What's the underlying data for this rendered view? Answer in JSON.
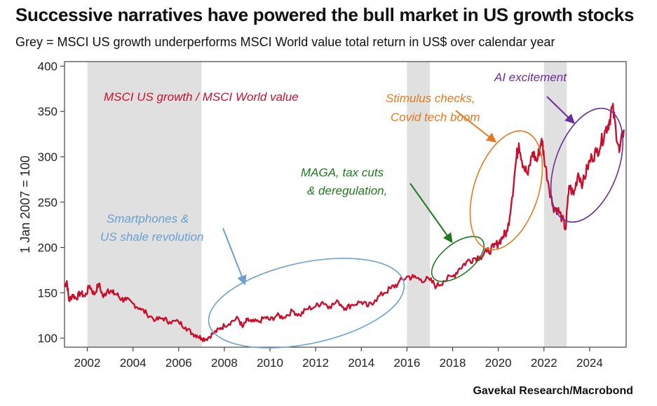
{
  "title": "Successive narratives have powered the bull market in US growth stocks",
  "subtitle": "Grey = MSCI US growth underperforms MSCI World value total return in US$ over calendar year",
  "source": "Gavekal Research/Macrobond",
  "chart_data": {
    "type": "line",
    "ylabel": "1 Jan 2007 = 100",
    "xlim": [
      2001.0,
      2025.6
    ],
    "ylim": [
      90,
      405
    ],
    "yticks": [
      100,
      150,
      200,
      250,
      300,
      350,
      400
    ],
    "xticks": [
      2002,
      2004,
      2006,
      2008,
      2010,
      2012,
      2014,
      2016,
      2018,
      2020,
      2022,
      2024
    ],
    "shaded_periods": [
      [
        2002,
        2007
      ],
      [
        2016,
        2017
      ],
      [
        2022,
        2023
      ]
    ],
    "series": [
      {
        "name": "MSCI US growth / MSCI World value",
        "color": "#c8102e",
        "x": [
          2001.0,
          2001.1,
          2001.2,
          2001.35,
          2001.5,
          2001.7,
          2001.9,
          2002.1,
          2002.3,
          2002.5,
          2002.7,
          2002.9,
          2003.1,
          2003.3,
          2003.5,
          2003.7,
          2004.0,
          2004.3,
          2004.6,
          2005.0,
          2005.3,
          2005.6,
          2006.0,
          2006.3,
          2006.6,
          2006.8,
          2007.0,
          2007.2,
          2007.5,
          2007.8,
          2008.0,
          2008.3,
          2008.6,
          2008.8,
          2009.0,
          2009.2,
          2009.5,
          2009.8,
          2010.0,
          2010.3,
          2010.6,
          2011.0,
          2011.3,
          2011.6,
          2012.0,
          2012.3,
          2012.6,
          2013.0,
          2013.3,
          2013.6,
          2014.0,
          2014.3,
          2014.6,
          2015.0,
          2015.3,
          2015.6,
          2016.0,
          2016.3,
          2016.6,
          2017.0,
          2017.3,
          2017.6,
          2018.0,
          2018.3,
          2018.6,
          2018.9,
          2019.2,
          2019.5,
          2019.8,
          2020.0,
          2020.2,
          2020.4,
          2020.6,
          2020.8,
          2020.9,
          2021.1,
          2021.3,
          2021.5,
          2021.7,
          2021.9,
          2022.0,
          2022.2,
          2022.4,
          2022.6,
          2022.8,
          2022.95,
          2023.1,
          2023.3,
          2023.5,
          2023.7,
          2023.9,
          2024.1,
          2024.3,
          2024.5,
          2024.7,
          2024.85,
          2025.0,
          2025.15,
          2025.3,
          2025.5
        ],
        "values": [
          157,
          163,
          141,
          148,
          144,
          150,
          146,
          158,
          148,
          160,
          145,
          154,
          150,
          148,
          143,
          142,
          138,
          133,
          127,
          120,
          122,
          118,
          118,
          112,
          105,
          103,
          100,
          99,
          105,
          110,
          114,
          118,
          122,
          112,
          120,
          118,
          118,
          123,
          120,
          125,
          123,
          130,
          125,
          132,
          135,
          140,
          135,
          140,
          133,
          137,
          140,
          135,
          142,
          150,
          155,
          160,
          168,
          167,
          165,
          164,
          157,
          163,
          168,
          177,
          184,
          188,
          190,
          195,
          200,
          205,
          212,
          218,
          255,
          300,
          315,
          290,
          280,
          305,
          295,
          320,
          300,
          270,
          245,
          242,
          232,
          220,
          268,
          258,
          282,
          270,
          288,
          300,
          305,
          315,
          330,
          338,
          355,
          330,
          305,
          330
        ]
      }
    ],
    "annotations": {
      "series_label": "MSCI US growth / MSCI World value",
      "smartphones_1": "Smartphones &",
      "smartphones_2": "US shale revolution",
      "maga_1": "MAGA, tax cuts",
      "maga_2": "& deregulation,",
      "stimulus_1": "Stimulus checks,",
      "stimulus_2": "Covid tech boom",
      "ai": "AI excitement"
    },
    "annotation_colors": {
      "series_label": "#c8102e",
      "smartphones": "#6a9fcf",
      "maga": "#1f7a1f",
      "stimulus": "#e07a1f",
      "ai": "#6a2c9a"
    },
    "shade_color": "#e0e0e0"
  }
}
